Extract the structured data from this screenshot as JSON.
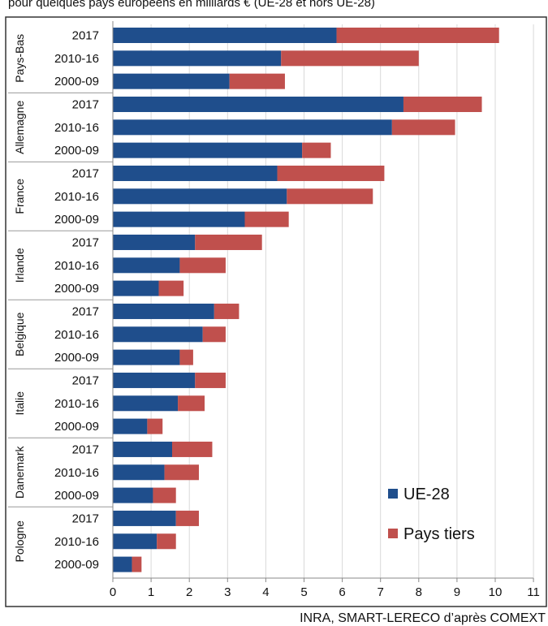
{
  "header_fragment": "pour quelques pays européens en milliards € (UE-28 et hors UE-28)",
  "source": "INRA, SMART-LERECO d’après COMEXT",
  "colors": {
    "ue28": "#1f4e8c",
    "pays_tiers": "#c0504d",
    "grid": "#d9d9d9",
    "axis": "#888888"
  },
  "chart_data": {
    "type": "bar",
    "orientation": "horizontal",
    "stacked": true,
    "title": "",
    "xlabel": "",
    "ylabel": "",
    "xlim": [
      0,
      11
    ],
    "xticks": [
      0,
      1,
      2,
      3,
      4,
      5,
      6,
      7,
      8,
      9,
      10,
      11
    ],
    "grid": true,
    "legend_position": "bottom-right",
    "series": [
      {
        "name": "UE-28",
        "key": "ue28"
      },
      {
        "name": "Pays tiers",
        "key": "pays_tiers"
      }
    ],
    "groups": [
      {
        "country": "Pays-Bas",
        "rows": [
          {
            "period": "2017",
            "ue28": 5.85,
            "pays_tiers": 4.25
          },
          {
            "period": "2010-16",
            "ue28": 4.4,
            "pays_tiers": 3.6
          },
          {
            "period": "2000-09",
            "ue28": 3.05,
            "pays_tiers": 1.45
          }
        ]
      },
      {
        "country": "Allemagne",
        "rows": [
          {
            "period": "2017",
            "ue28": 7.6,
            "pays_tiers": 2.05
          },
          {
            "period": "2010-16",
            "ue28": 7.3,
            "pays_tiers": 1.65
          },
          {
            "period": "2000-09",
            "ue28": 4.95,
            "pays_tiers": 0.75
          }
        ]
      },
      {
        "country": "France",
        "rows": [
          {
            "period": "2017",
            "ue28": 4.3,
            "pays_tiers": 2.8
          },
          {
            "period": "2010-16",
            "ue28": 4.55,
            "pays_tiers": 2.25
          },
          {
            "period": "2000-09",
            "ue28": 3.45,
            "pays_tiers": 1.15
          }
        ]
      },
      {
        "country": "Irlande",
        "rows": [
          {
            "period": "2017",
            "ue28": 2.15,
            "pays_tiers": 1.75
          },
          {
            "period": "2010-16",
            "ue28": 1.75,
            "pays_tiers": 1.2
          },
          {
            "period": "2000-09",
            "ue28": 1.2,
            "pays_tiers": 0.65
          }
        ]
      },
      {
        "country": "Belgique",
        "rows": [
          {
            "period": "2017",
            "ue28": 2.65,
            "pays_tiers": 0.65
          },
          {
            "period": "2010-16",
            "ue28": 2.35,
            "pays_tiers": 0.6
          },
          {
            "period": "2000-09",
            "ue28": 1.75,
            "pays_tiers": 0.35
          }
        ]
      },
      {
        "country": "Italie",
        "rows": [
          {
            "period": "2017",
            "ue28": 2.15,
            "pays_tiers": 0.8
          },
          {
            "period": "2010-16",
            "ue28": 1.7,
            "pays_tiers": 0.7
          },
          {
            "period": "2000-09",
            "ue28": 0.9,
            "pays_tiers": 0.4
          }
        ]
      },
      {
        "country": "Danemark",
        "rows": [
          {
            "period": "2017",
            "ue28": 1.55,
            "pays_tiers": 1.05
          },
          {
            "period": "2010-16",
            "ue28": 1.35,
            "pays_tiers": 0.9
          },
          {
            "period": "2000-09",
            "ue28": 1.05,
            "pays_tiers": 0.6
          }
        ]
      },
      {
        "country": "Pologne",
        "rows": [
          {
            "period": "2017",
            "ue28": 1.65,
            "pays_tiers": 0.6
          },
          {
            "period": "2010-16",
            "ue28": 1.15,
            "pays_tiers": 0.5
          },
          {
            "period": "2000-09",
            "ue28": 0.5,
            "pays_tiers": 0.25
          }
        ]
      }
    ]
  }
}
